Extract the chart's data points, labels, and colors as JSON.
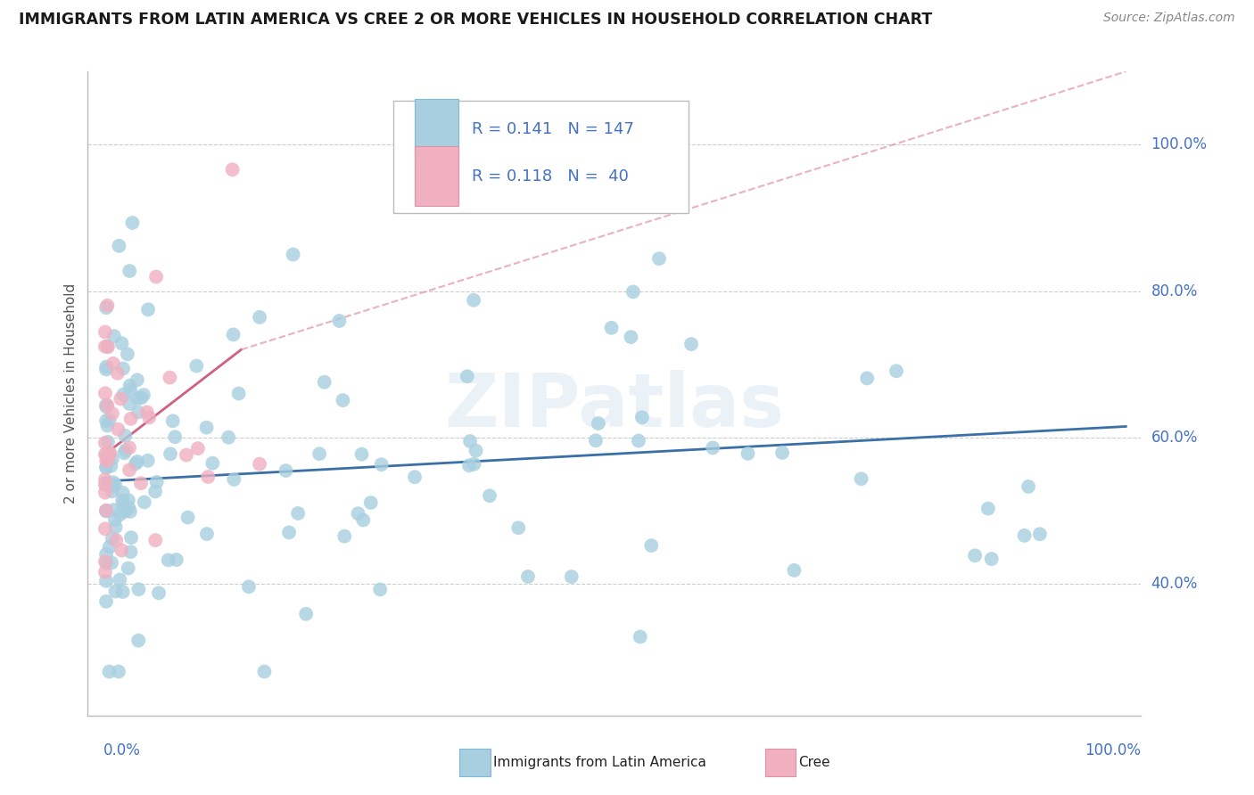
{
  "title": "IMMIGRANTS FROM LATIN AMERICA VS CREE 2 OR MORE VEHICLES IN HOUSEHOLD CORRELATION CHART",
  "source": "Source: ZipAtlas.com",
  "ylabel": "2 or more Vehicles in Household",
  "series1_color": "#a8cfe0",
  "series2_color": "#f0b0c0",
  "series1_edge": "none",
  "series2_edge": "none",
  "trendline1_color": "#3a6fa8",
  "trendline2_color": "#d06080",
  "trendline2_dashed_color": "#e090a8",
  "watermark": "ZIPatlas",
  "legend_R1": "R = 0.141",
  "legend_N1": "N = 147",
  "legend_R2": "R = 0.118",
  "legend_N2": "N =  40",
  "ytick_color": "#4472c4",
  "xtick_color": "#4472c4"
}
